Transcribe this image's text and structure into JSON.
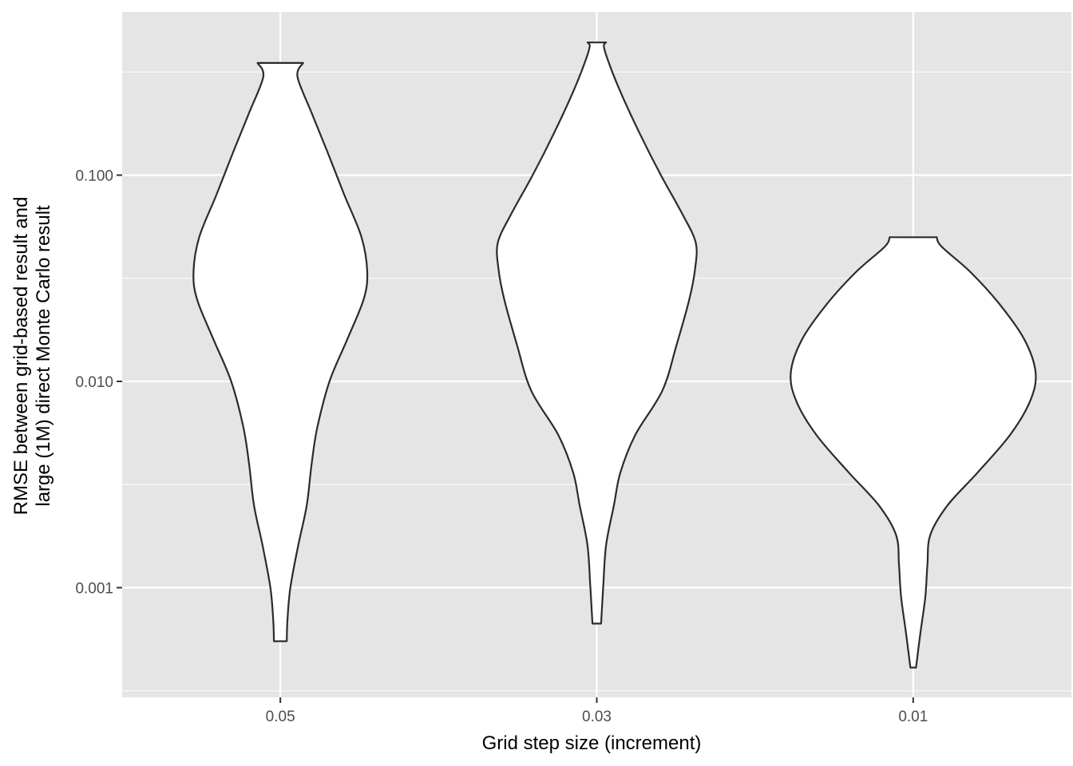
{
  "chart_data": {
    "type": "violin",
    "title": "",
    "xlabel": "Grid step size (increment)",
    "ylabel_lines": [
      "RMSE between grid-based result and",
      "large (1M) direct Monte Carlo result"
    ],
    "y_scale": "log10",
    "ylim": [
      0.0003,
      0.7
    ],
    "y_ticks": [
      0.001,
      0.01,
      0.1
    ],
    "y_tick_labels": [
      "0.001",
      "0.010",
      "0.100"
    ],
    "categories": [
      "0.05",
      "0.03",
      "0.01"
    ],
    "grid": true,
    "colors": {
      "panel": "#e5e5e5",
      "grid": "#ffffff",
      "fill": "#ffffff",
      "outline": "#2b2b2b"
    },
    "violins": [
      {
        "category": "0.05",
        "min": 0.00055,
        "max": 0.35,
        "profile": [
          [
            0.00055,
            0.045
          ],
          [
            0.0007,
            0.05
          ],
          [
            0.001,
            0.07
          ],
          [
            0.0016,
            0.125
          ],
          [
            0.0025,
            0.185
          ],
          [
            0.004,
            0.22
          ],
          [
            0.006,
            0.26
          ],
          [
            0.01,
            0.345
          ],
          [
            0.016,
            0.47
          ],
          [
            0.025,
            0.585
          ],
          [
            0.034,
            0.61
          ],
          [
            0.05,
            0.57
          ],
          [
            0.08,
            0.45
          ],
          [
            0.13,
            0.33
          ],
          [
            0.2,
            0.22
          ],
          [
            0.3,
            0.12
          ],
          [
            0.35,
            0.16
          ]
        ]
      },
      {
        "category": "0.03",
        "min": 0.00067,
        "max": 0.44,
        "profile": [
          [
            0.00067,
            0.03
          ],
          [
            0.001,
            0.045
          ],
          [
            0.0016,
            0.065
          ],
          [
            0.0025,
            0.12
          ],
          [
            0.0036,
            0.165
          ],
          [
            0.0055,
            0.27
          ],
          [
            0.009,
            0.46
          ],
          [
            0.015,
            0.56
          ],
          [
            0.025,
            0.65
          ],
          [
            0.035,
            0.69
          ],
          [
            0.047,
            0.695
          ],
          [
            0.065,
            0.6
          ],
          [
            0.1,
            0.45
          ],
          [
            0.16,
            0.3
          ],
          [
            0.25,
            0.17
          ],
          [
            0.35,
            0.085
          ],
          [
            0.42,
            0.05
          ],
          [
            0.44,
            0.065
          ]
        ]
      },
      {
        "category": "0.01",
        "min": 0.00041,
        "max": 0.05,
        "profile": [
          [
            0.00041,
            0.02
          ],
          [
            0.0006,
            0.05
          ],
          [
            0.0009,
            0.085
          ],
          [
            0.0013,
            0.1
          ],
          [
            0.0018,
            0.12
          ],
          [
            0.0025,
            0.24
          ],
          [
            0.0036,
            0.45
          ],
          [
            0.0055,
            0.68
          ],
          [
            0.008,
            0.82
          ],
          [
            0.011,
            0.86
          ],
          [
            0.016,
            0.78
          ],
          [
            0.024,
            0.6
          ],
          [
            0.034,
            0.4
          ],
          [
            0.045,
            0.2
          ],
          [
            0.05,
            0.165
          ]
        ]
      }
    ]
  }
}
